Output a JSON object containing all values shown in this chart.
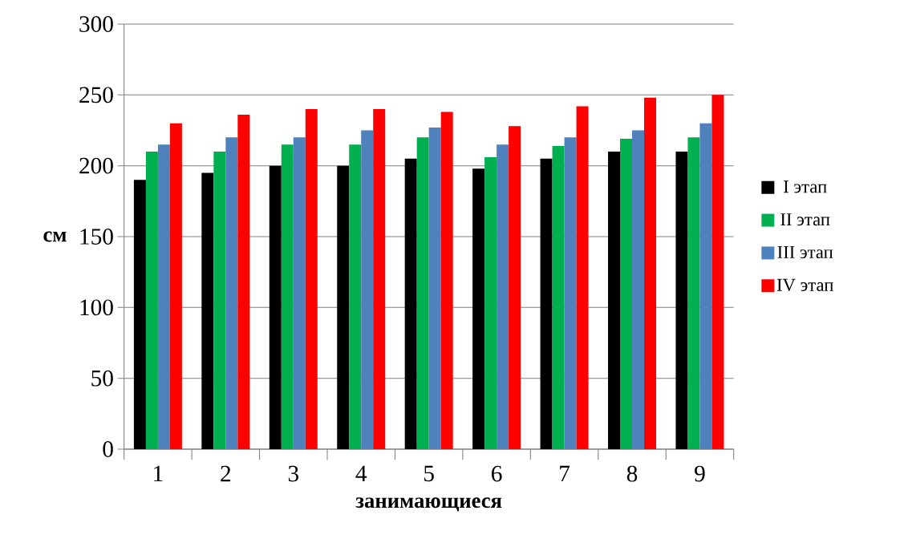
{
  "chart_data": {
    "type": "bar",
    "xlabel": "**занимающиеся**",
    "ylabel": "**см**",
    "categories": [
      "1",
      "2",
      "3",
      "4",
      "5",
      "6",
      "7",
      "8",
      "9"
    ],
    "series": [
      {
        "name": "I этап",
        "color": "#000000",
        "values": [
          190,
          195,
          200,
          200,
          205,
          198,
          205,
          210,
          210
        ]
      },
      {
        "name": "II этап",
        "color": "#00b050",
        "values": [
          210,
          210,
          215,
          215,
          220,
          206,
          214,
          219,
          220
        ]
      },
      {
        "name": "III этап",
        "color": "#4f81bd",
        "values": [
          215,
          220,
          220,
          225,
          227,
          215,
          220,
          225,
          230
        ]
      },
      {
        "name": "IV этап",
        "color": "#ff0000",
        "values": [
          230,
          236,
          240,
          240,
          238,
          228,
          242,
          248,
          250
        ]
      }
    ],
    "ylim": [
      0,
      300
    ],
    "yticks": [
      0,
      50,
      100,
      150,
      200,
      250,
      300
    ],
    "grid": "y",
    "legend": "right"
  }
}
